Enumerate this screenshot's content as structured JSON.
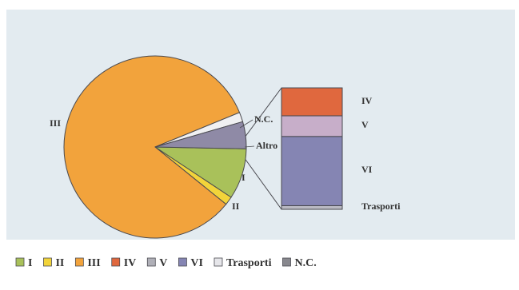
{
  "chart_data": {
    "type": "pie",
    "pie": {
      "slices": [
        {
          "label": "I",
          "value": 9,
          "color": "#a9c15a"
        },
        {
          "label": "II",
          "value": 1.5,
          "color": "#f2d43a"
        },
        {
          "label": "III",
          "value": 83,
          "color": "#f2a33c"
        },
        {
          "label": "Altro",
          "value": 1.7,
          "color": "#f0f0f2"
        },
        {
          "label": "N.C.",
          "value": 4.8,
          "color": "#8f8aa6"
        }
      ],
      "exploded_slice": "Altro"
    },
    "stacked_bar": {
      "segments": [
        {
          "label": "Trasporti",
          "value": 3,
          "color": "#b9b9c2"
        },
        {
          "label": "VI",
          "value": 57,
          "color": "#8585b3"
        },
        {
          "label": "V",
          "value": 17,
          "color": "#c7aec9"
        },
        {
          "label": "IV",
          "value": 23,
          "color": "#e0683e"
        }
      ]
    },
    "legend": {
      "placement": "bottom",
      "items": [
        {
          "label": "I",
          "color": "#a9c15a"
        },
        {
          "label": "II",
          "color": "#f2d43a"
        },
        {
          "label": "III",
          "color": "#f2a33c"
        },
        {
          "label": "IV",
          "color": "#e0683e"
        },
        {
          "label": "V",
          "color": "#b0b0b8"
        },
        {
          "label": "VI",
          "color": "#8585b3"
        },
        {
          "label": "Trasporti",
          "color": "#e6e6ea"
        },
        {
          "label": "N.C.",
          "color": "#88888e"
        }
      ]
    }
  },
  "colors": {
    "plot_background": "#e3ebf0",
    "outline": "#4a4a50"
  }
}
